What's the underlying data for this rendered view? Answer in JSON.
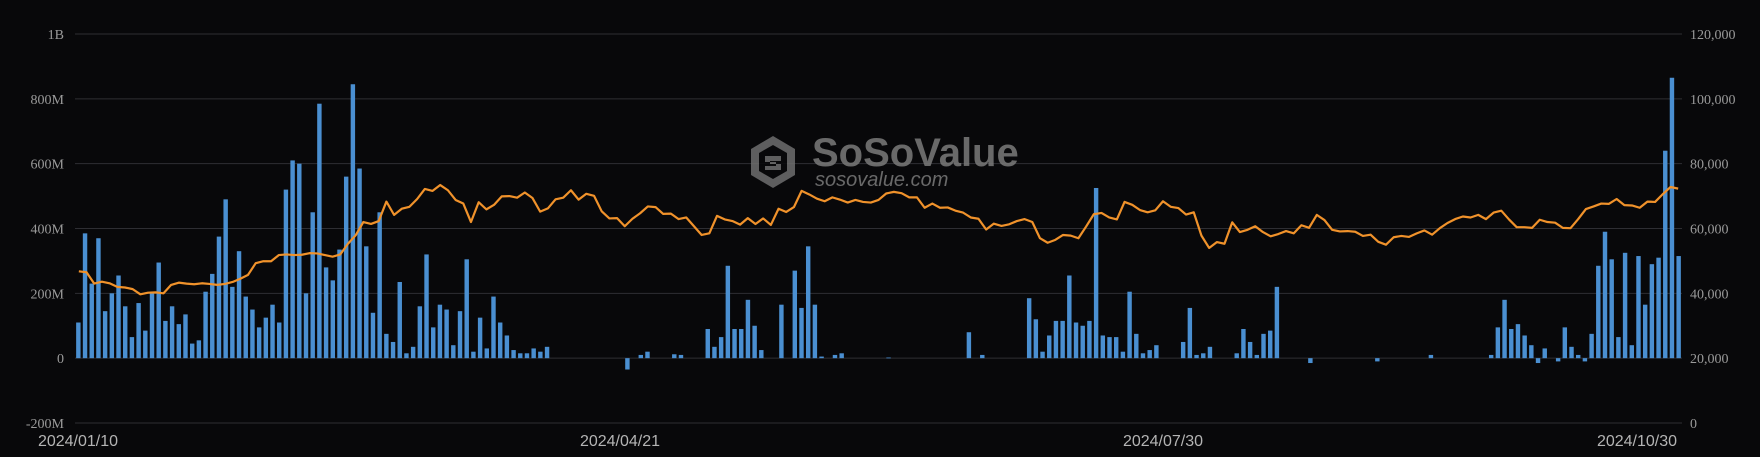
{
  "chart_data": {
    "type": "bar",
    "title": "",
    "xlabel": "",
    "ylabel": "",
    "grid": true,
    "colors": {
      "bar": "#4a8fd1",
      "line": "#f0922b",
      "grid": "#2e2e33",
      "background": "#08080a"
    },
    "y_left": {
      "ticks": [
        "1B",
        "800M",
        "600M",
        "400M",
        "200M",
        "0",
        "-200M"
      ],
      "ylim": [
        -200000000,
        1000000000
      ]
    },
    "y_right": {
      "ticks": [
        "120,000",
        "100,000",
        "80,000",
        "60,000",
        "40,000",
        "20,000",
        "0"
      ],
      "ylim": [
        0,
        120000
      ]
    },
    "x_ticks": [
      "2024/01/10",
      "2024/04/21",
      "2024/07/30",
      "2024/10/30"
    ],
    "watermark": {
      "title": "SoSoValue",
      "subtitle": "sosovalue.com"
    },
    "series": [
      {
        "type": "bar",
        "axis": "left",
        "values": [
          110,
          385,
          230,
          370,
          145,
          200,
          255,
          160,
          65,
          170,
          85,
          200,
          295,
          115,
          160,
          105,
          135,
          45,
          55,
          205,
          260,
          375,
          490,
          220,
          330,
          190,
          150,
          95,
          125,
          165,
          110,
          520,
          610,
          600,
          200,
          450,
          785,
          280,
          240,
          335,
          560,
          845,
          585,
          345,
          140,
          450,
          75,
          50,
          235,
          15,
          35,
          160,
          320,
          95,
          165,
          150,
          40,
          145,
          305,
          20,
          125,
          30,
          190,
          110,
          70,
          25,
          15,
          15,
          30,
          20,
          35,
          0,
          0,
          0,
          0,
          0,
          0,
          0,
          0,
          0,
          0,
          0,
          -35,
          0,
          10,
          20,
          0,
          0,
          0,
          12,
          10,
          0,
          0,
          0,
          90,
          35,
          65,
          285,
          90,
          90,
          180,
          100,
          25,
          0,
          0,
          165,
          0,
          270,
          155,
          345,
          165,
          5,
          0,
          10,
          15,
          0,
          0,
          0,
          0,
          0,
          0,
          2,
          0,
          0,
          0,
          0,
          0,
          0,
          0,
          0,
          0,
          0,
          0,
          80,
          0,
          10,
          0,
          0,
          0,
          0,
          0,
          0,
          185,
          120,
          20,
          70,
          115,
          115,
          255,
          110,
          100,
          115,
          525,
          70,
          65,
          65,
          20,
          205,
          75,
          15,
          25,
          40,
          0,
          0,
          0,
          50,
          155,
          10,
          15,
          35,
          0,
          0,
          0,
          15,
          90,
          50,
          10,
          75,
          85,
          220,
          0,
          0,
          0,
          0,
          -15,
          0,
          0,
          0,
          0,
          0,
          0,
          0,
          0,
          0,
          -10,
          0,
          0,
          0,
          0,
          0,
          0,
          0,
          10,
          0,
          0,
          0,
          0,
          0,
          0,
          0,
          0,
          10,
          95,
          180,
          90,
          105,
          70,
          40,
          -15,
          30,
          0,
          -10,
          95,
          35,
          10,
          -10,
          75,
          285,
          390,
          305,
          65,
          325,
          40,
          315,
          165,
          290,
          310,
          640,
          865,
          315
        ]
      },
      {
        "type": "line",
        "axis": "right",
        "values": [
          46800,
          46500,
          43000,
          43600,
          43100,
          42000,
          41800,
          41300,
          39700,
          40200,
          40300,
          40000,
          42600,
          43300,
          43000,
          42800,
          43100,
          42900,
          42600,
          42900,
          43500,
          44500,
          45700,
          49300,
          49900,
          49900,
          51800,
          52000,
          51800,
          51900,
          52400,
          52300,
          51800,
          51300,
          52000,
          55300,
          57900,
          62000,
          61400,
          62300,
          68300,
          64200,
          66100,
          66700,
          69100,
          72200,
          71600,
          73400,
          71800,
          68800,
          67700,
          62000,
          68100,
          65900,
          67300,
          69900,
          70000,
          69500,
          71100,
          69400,
          65200,
          66200,
          69000,
          69500,
          71800,
          68900,
          70700,
          70100,
          65300,
          63100,
          63200,
          60700,
          63000,
          64700,
          66800,
          66600,
          64500,
          64600,
          62900,
          63400,
          60700,
          58000,
          58500,
          63900,
          62800,
          62300,
          61200,
          63200,
          61400,
          63100,
          61100,
          66100,
          65100,
          66600,
          71600,
          70500,
          69200,
          68400,
          69600,
          68900,
          68000,
          68800,
          68200,
          68000,
          68800,
          70800,
          71300,
          70900,
          69600,
          69600,
          66400,
          67700,
          66400,
          66500,
          65500,
          64900,
          63400,
          63000,
          59700,
          61500,
          60800,
          61300,
          62300,
          62900,
          62000,
          57000,
          55600,
          56500,
          58000,
          57800,
          57000,
          60600,
          64400,
          64800,
          63400,
          62800,
          68200,
          67300,
          65700,
          65000,
          65600,
          68400,
          66700,
          66300,
          64300,
          65000,
          57800,
          54000,
          55800,
          55300,
          61900,
          58900,
          59600,
          60700,
          58900,
          57600,
          58300,
          59200,
          58500,
          61000,
          60200,
          64200,
          62600,
          59600,
          59100,
          59200,
          59000,
          57700,
          58100,
          55900,
          55000,
          57300,
          57700,
          57400,
          58500,
          59400,
          58100,
          60100,
          61700,
          62900,
          63700,
          63400,
          64200,
          62900,
          64900,
          65500,
          62800,
          60400,
          60400,
          60200,
          62700,
          62000,
          61800,
          60200,
          60100,
          62900,
          66000,
          66800,
          67700,
          67600,
          69100,
          67200,
          67100,
          66400,
          68300,
          68200,
          70600,
          72800,
          72300
        ]
      }
    ]
  }
}
